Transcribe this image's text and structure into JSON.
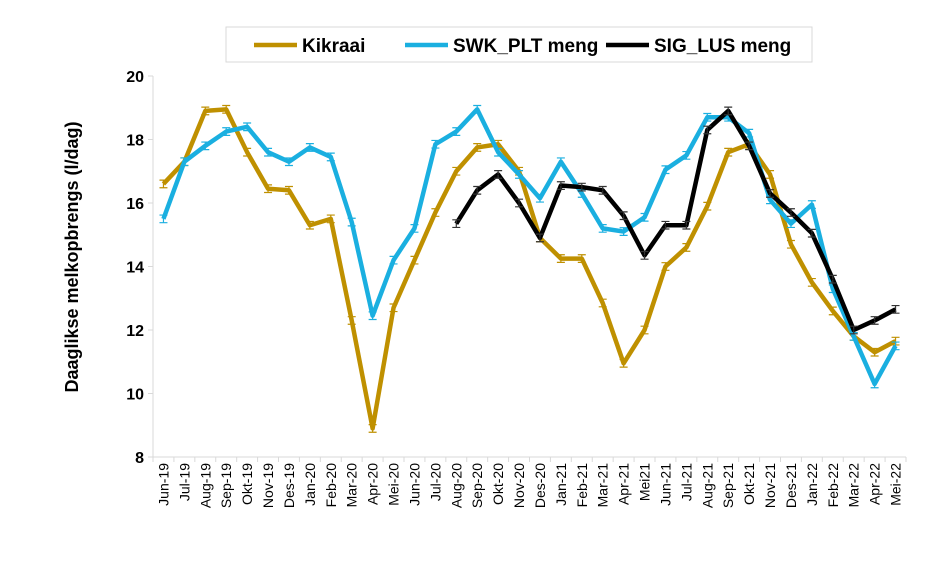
{
  "chart_data": {
    "type": "line",
    "title": "",
    "xlabel": "",
    "ylabel": "Daaglikse melkopbrengs (l/dag)",
    "ylim": [
      8,
      20
    ],
    "yticks": [
      8,
      10,
      12,
      14,
      16,
      18,
      20
    ],
    "grid": false,
    "legend_position": "top",
    "error_bars": true,
    "categories": [
      "Jun-19",
      "Jul-19",
      "Aug-19",
      "Sep-19",
      "Okt-19",
      "Nov-19",
      "Des-19",
      "Jan-20",
      "Feb-20",
      "Mar-20",
      "Apr-20",
      "Mei-20",
      "Jun-20",
      "Jul-20",
      "Aug-20",
      "Sep-20",
      "Okt-20",
      "Nov-20",
      "Des-20",
      "Jan-21",
      "Feb-21",
      "Mar-21",
      "Apr-21",
      "Mei21",
      "Jun-21",
      "Jul-21",
      "Aug-21",
      "Sep-21",
      "Okt-21",
      "Nov-21",
      "Des-21",
      "Jan-22",
      "Feb-22",
      "Mar-22",
      "Apr-22",
      "Mei-22"
    ],
    "series": [
      {
        "name": "Kikraai",
        "color": "#BF9000",
        "values": [
          16.6,
          17.3,
          18.9,
          18.95,
          17.6,
          16.45,
          16.4,
          15.3,
          15.5,
          12.3,
          8.9,
          12.7,
          14.2,
          15.7,
          17.0,
          17.75,
          17.85,
          17.0,
          14.9,
          14.25,
          14.25,
          12.85,
          10.95,
          12.0,
          14.0,
          14.6,
          15.9,
          17.6,
          17.85,
          16.9,
          14.7,
          13.5,
          12.6,
          11.8,
          11.3,
          11.65
        ]
      },
      {
        "name": "SWK_PLT meng",
        "color": "#1AAFE0",
        "values": [
          15.5,
          17.3,
          17.8,
          18.25,
          18.4,
          17.6,
          17.3,
          17.75,
          17.45,
          15.4,
          12.45,
          14.2,
          15.2,
          17.85,
          18.25,
          18.95,
          17.6,
          16.9,
          16.15,
          17.3,
          16.3,
          15.2,
          15.1,
          15.55,
          17.05,
          17.5,
          18.7,
          18.7,
          18.2,
          16.1,
          15.35,
          15.95,
          13.3,
          11.8,
          10.3,
          11.5
        ]
      },
      {
        "name": "SIG_LUS meng",
        "color": "#000000",
        "values": [
          null,
          null,
          null,
          null,
          null,
          null,
          null,
          null,
          null,
          null,
          null,
          null,
          null,
          null,
          15.35,
          16.4,
          16.9,
          16.0,
          14.9,
          16.55,
          16.5,
          16.4,
          15.6,
          14.35,
          15.3,
          15.3,
          18.3,
          18.9,
          17.8,
          16.3,
          15.7,
          15.05,
          13.6,
          12.0,
          12.3,
          12.65
        ]
      }
    ]
  }
}
